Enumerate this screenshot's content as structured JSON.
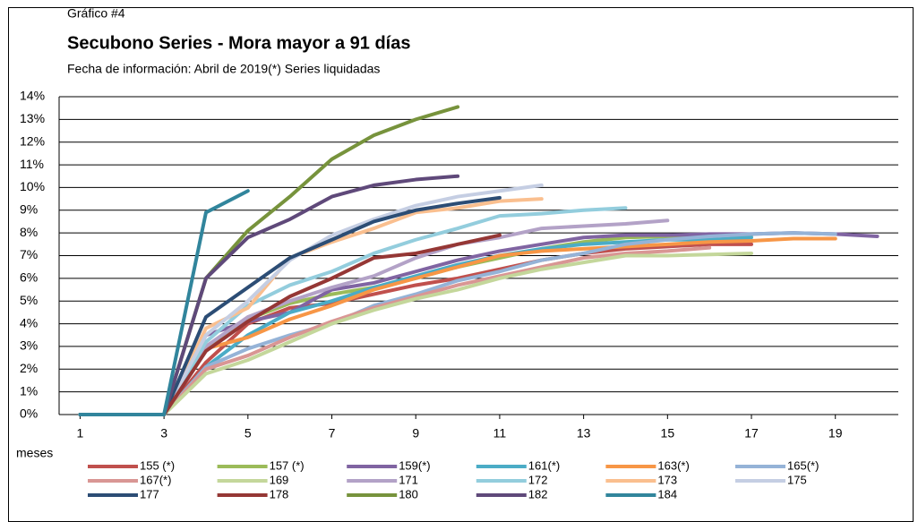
{
  "chart_data": {
    "type": "line",
    "label": "Gráfico #4",
    "title": "Secubono Series - Mora mayor a 91 días",
    "subtitle": "Fecha de información: Abril de 2019(*) Series liquidadas",
    "x_label": "meses",
    "x": [
      1,
      2,
      3,
      4,
      5,
      6,
      7,
      8,
      9,
      10,
      11,
      12,
      13,
      14,
      15,
      16,
      17,
      18,
      19,
      20
    ],
    "xlim": [
      0.5,
      20.5
    ],
    "xticks": [
      1,
      3,
      5,
      7,
      9,
      11,
      13,
      15,
      17,
      19
    ],
    "ylim": [
      0,
      14
    ],
    "yticks": [
      {
        "value": 0,
        "label": "0%"
      },
      {
        "value": 1,
        "label": "1%"
      },
      {
        "value": 2,
        "label": "2%"
      },
      {
        "value": 3,
        "label": "3%"
      },
      {
        "value": 4,
        "label": "4%"
      },
      {
        "value": 5,
        "label": "5%"
      },
      {
        "value": 6,
        "label": "6%"
      },
      {
        "value": 7,
        "label": "7%"
      },
      {
        "value": 8,
        "label": "8%"
      },
      {
        "value": 9,
        "label": "9%"
      },
      {
        "value": 10,
        "label": "10%"
      },
      {
        "value": 11,
        "label": "11%"
      },
      {
        "value": 12,
        "label": "12%"
      },
      {
        "value": 13,
        "label": "13%"
      },
      {
        "value": 14,
        "label": "14%"
      }
    ],
    "grid": true,
    "legend": "bottom",
    "series": [
      {
        "name": "155 (*)",
        "color": "#c0504d",
        "values": [
          0,
          0,
          0,
          2.3,
          4.0,
          4.7,
          4.9,
          5.3,
          5.7,
          6.0,
          6.4,
          6.8,
          7.1,
          7.3,
          7.4,
          7.5,
          7.5,
          null,
          null,
          null
        ]
      },
      {
        "name": "157 (*)",
        "color": "#9bbb59",
        "values": [
          0,
          0,
          0,
          3.0,
          4.2,
          4.9,
          5.3,
          5.6,
          6.0,
          6.5,
          6.9,
          7.3,
          7.6,
          7.8,
          7.85,
          7.9,
          7.9,
          null,
          null,
          null
        ]
      },
      {
        "name": "159(*)",
        "color": "#8064a2",
        "values": [
          0,
          0,
          0,
          3.5,
          4.1,
          4.5,
          5.5,
          5.8,
          6.3,
          6.8,
          7.2,
          7.5,
          7.8,
          7.9,
          7.9,
          7.95,
          7.95,
          8.0,
          7.95,
          7.85
        ]
      },
      {
        "name": "161(*)",
        "color": "#4bacc6",
        "values": [
          0,
          0,
          0,
          2.1,
          3.5,
          4.5,
          5.0,
          5.6,
          6.1,
          6.6,
          7.0,
          7.3,
          7.5,
          7.6,
          7.7,
          7.7,
          7.8,
          null,
          null,
          null
        ]
      },
      {
        "name": "163(*)",
        "color": "#f79646",
        "values": [
          0,
          0,
          0,
          2.9,
          3.4,
          4.2,
          4.8,
          5.5,
          6.0,
          6.5,
          7.0,
          7.2,
          7.3,
          7.4,
          7.5,
          7.6,
          7.65,
          7.75,
          7.75,
          null
        ]
      },
      {
        "name": "165(*)",
        "color": "#95b3d7",
        "values": [
          0,
          0,
          0,
          2.1,
          2.9,
          3.5,
          4.0,
          4.8,
          5.3,
          5.9,
          6.3,
          6.8,
          7.1,
          7.5,
          7.7,
          7.85,
          7.95,
          8.0,
          7.95,
          null
        ]
      },
      {
        "name": "167(*)",
        "color": "#d99694",
        "values": [
          0,
          0,
          0,
          2.0,
          2.6,
          3.4,
          4.1,
          4.7,
          5.2,
          5.7,
          6.1,
          6.5,
          6.9,
          7.1,
          7.2,
          7.35,
          null,
          null,
          null,
          null
        ]
      },
      {
        "name": "169",
        "color": "#c4d79b",
        "values": [
          0,
          0,
          0,
          1.8,
          2.4,
          3.2,
          4.0,
          4.6,
          5.1,
          5.5,
          6.0,
          6.4,
          6.7,
          7.0,
          7.0,
          7.05,
          7.1,
          null,
          null,
          null
        ]
      },
      {
        "name": "171",
        "color": "#b3a2c7",
        "values": [
          0,
          0,
          0,
          3.0,
          4.3,
          5.0,
          5.6,
          6.1,
          6.9,
          7.5,
          7.8,
          8.2,
          8.3,
          8.4,
          8.55,
          null,
          null,
          null,
          null,
          null
        ]
      },
      {
        "name": "172",
        "color": "#93cddd",
        "values": [
          0,
          0,
          0,
          3.2,
          4.8,
          5.7,
          6.3,
          7.1,
          7.7,
          8.2,
          8.75,
          8.85,
          9.0,
          9.1,
          null,
          null,
          null,
          null,
          null,
          null
        ]
      },
      {
        "name": "173",
        "color": "#fabf8f",
        "values": [
          0,
          0,
          0,
          3.8,
          4.7,
          6.9,
          7.6,
          8.2,
          8.9,
          9.1,
          9.4,
          9.5,
          null,
          null,
          null,
          null,
          null,
          null,
          null,
          null
        ]
      },
      {
        "name": "175",
        "color": "#c5cee3",
        "values": [
          0,
          0,
          0,
          3.5,
          5.0,
          6.8,
          7.9,
          8.6,
          9.2,
          9.6,
          9.85,
          10.1,
          null,
          null,
          null,
          null,
          null,
          null,
          null,
          null
        ]
      },
      {
        "name": "177",
        "color": "#2c4d75",
        "values": [
          0,
          0,
          0,
          4.3,
          5.6,
          6.9,
          7.7,
          8.5,
          9.0,
          9.3,
          9.55,
          null,
          null,
          null,
          null,
          null,
          null,
          null,
          null,
          null
        ]
      },
      {
        "name": "178",
        "color": "#953735",
        "values": [
          0,
          0,
          0,
          2.8,
          4.1,
          5.2,
          6.0,
          6.9,
          7.1,
          7.5,
          7.9,
          null,
          null,
          null,
          null,
          null,
          null,
          null,
          null,
          null
        ]
      },
      {
        "name": "180",
        "color": "#77933c",
        "values": [
          0,
          0,
          0,
          6.0,
          8.1,
          9.6,
          11.25,
          12.3,
          13.0,
          13.55,
          null,
          null,
          null,
          null,
          null,
          null,
          null,
          null,
          null,
          null
        ]
      },
      {
        "name": "182",
        "color": "#5f497a",
        "values": [
          0,
          0,
          0,
          6.0,
          7.8,
          8.6,
          9.6,
          10.1,
          10.35,
          10.5,
          null,
          null,
          null,
          null,
          null,
          null,
          null,
          null,
          null,
          null
        ]
      },
      {
        "name": "184",
        "color": "#31859c",
        "values": [
          0,
          0,
          0,
          8.9,
          9.85,
          null,
          null,
          null,
          null,
          null,
          null,
          null,
          null,
          null,
          null,
          null,
          null,
          null,
          null,
          null
        ]
      }
    ]
  }
}
